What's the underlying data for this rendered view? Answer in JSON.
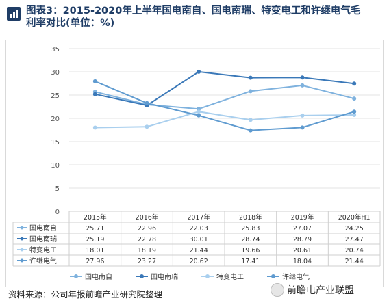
{
  "title": "图表3：2015-2020年上半年国电南自、国电南瑞、特变电工和许继电气毛利率对比(单位：%)",
  "source": "资料来源：公司年报前瞻产业研究院整理",
  "watermark_text": "前瞻电产业联盟",
  "colors": {
    "title": "#1f3d66",
    "series": [
      "#7fb2de",
      "#3a78b8",
      "#a9cfee",
      "#5f9bd0"
    ],
    "grid": "#e3e3e3",
    "axis_text": "#555555"
  },
  "chart_data": {
    "type": "line",
    "categories": [
      "2015年",
      "2016年",
      "2017年",
      "2018年",
      "2019年",
      "2020年H1"
    ],
    "ylim": [
      0,
      35
    ],
    "yticks": [
      0,
      5,
      10,
      15,
      20,
      25,
      30,
      35
    ],
    "grid": true,
    "legend_position": "bottom",
    "data_table": true,
    "series": [
      {
        "name": "国电南自",
        "values": [
          25.71,
          22.96,
          22.03,
          25.83,
          27.07,
          24.25
        ]
      },
      {
        "name": "国电南瑞",
        "values": [
          25.19,
          22.78,
          30.01,
          28.74,
          28.79,
          27.47
        ]
      },
      {
        "name": "特变电工",
        "values": [
          18.01,
          18.19,
          21.44,
          19.66,
          20.61,
          20.74
        ]
      },
      {
        "name": "许继电气",
        "values": [
          27.96,
          23.27,
          20.62,
          17.41,
          18.04,
          21.44
        ]
      }
    ]
  }
}
